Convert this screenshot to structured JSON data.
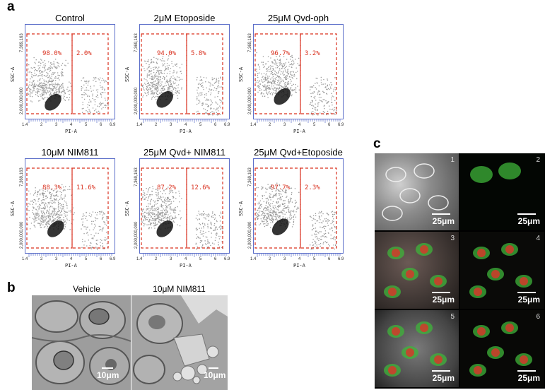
{
  "panels": {
    "a": "a",
    "b": "b",
    "c": "c"
  },
  "flow": {
    "y_tick_top": "7,369,163",
    "y_tick_mid": "2,000,000,000",
    "y_axis_label": "SSC-A",
    "x_axis_label": "PI-A",
    "x_tick_first": "1.4",
    "x_tick_last": "6.9",
    "x_ticks_mid": [
      "2",
      "3",
      "4",
      "5",
      "6"
    ],
    "plots": [
      {
        "title": "Control",
        "left_pct": "98.0%",
        "right_pct": "2.0%"
      },
      {
        "title": "2μM Etoposide",
        "left_pct": "94.0%",
        "right_pct": "5.8%"
      },
      {
        "title": "25μM Qvd-oph",
        "left_pct": "96.7%",
        "right_pct": "3.2%"
      },
      {
        "title": "10μM NIM811",
        "left_pct": "88.3%",
        "right_pct": "11.6%"
      },
      {
        "title": "25μM Qvd+ NIM811",
        "left_pct": "87.2%",
        "right_pct": "12.6%"
      },
      {
        "title": "25μM Qvd+Etoposide",
        "left_pct": "97.7%",
        "right_pct": "2.3%"
      }
    ],
    "colors": {
      "axis": "#5b6ec9",
      "gate": "#d9301e",
      "dots": "#9a9a9a",
      "dense": "#111111"
    }
  },
  "em": {
    "titles": [
      "Vehicle",
      "10μM NIM811"
    ],
    "scale_labels": [
      "10μm",
      "10μm"
    ]
  },
  "fluorescence": {
    "tiles": [
      {
        "num": "1",
        "scale": "25μm"
      },
      {
        "num": "2",
        "scale": "25μm"
      },
      {
        "num": "3",
        "scale": "25μm"
      },
      {
        "num": "4",
        "scale": "25μm"
      },
      {
        "num": "5",
        "scale": "25μm"
      },
      {
        "num": "6",
        "scale": "25μm"
      }
    ]
  }
}
